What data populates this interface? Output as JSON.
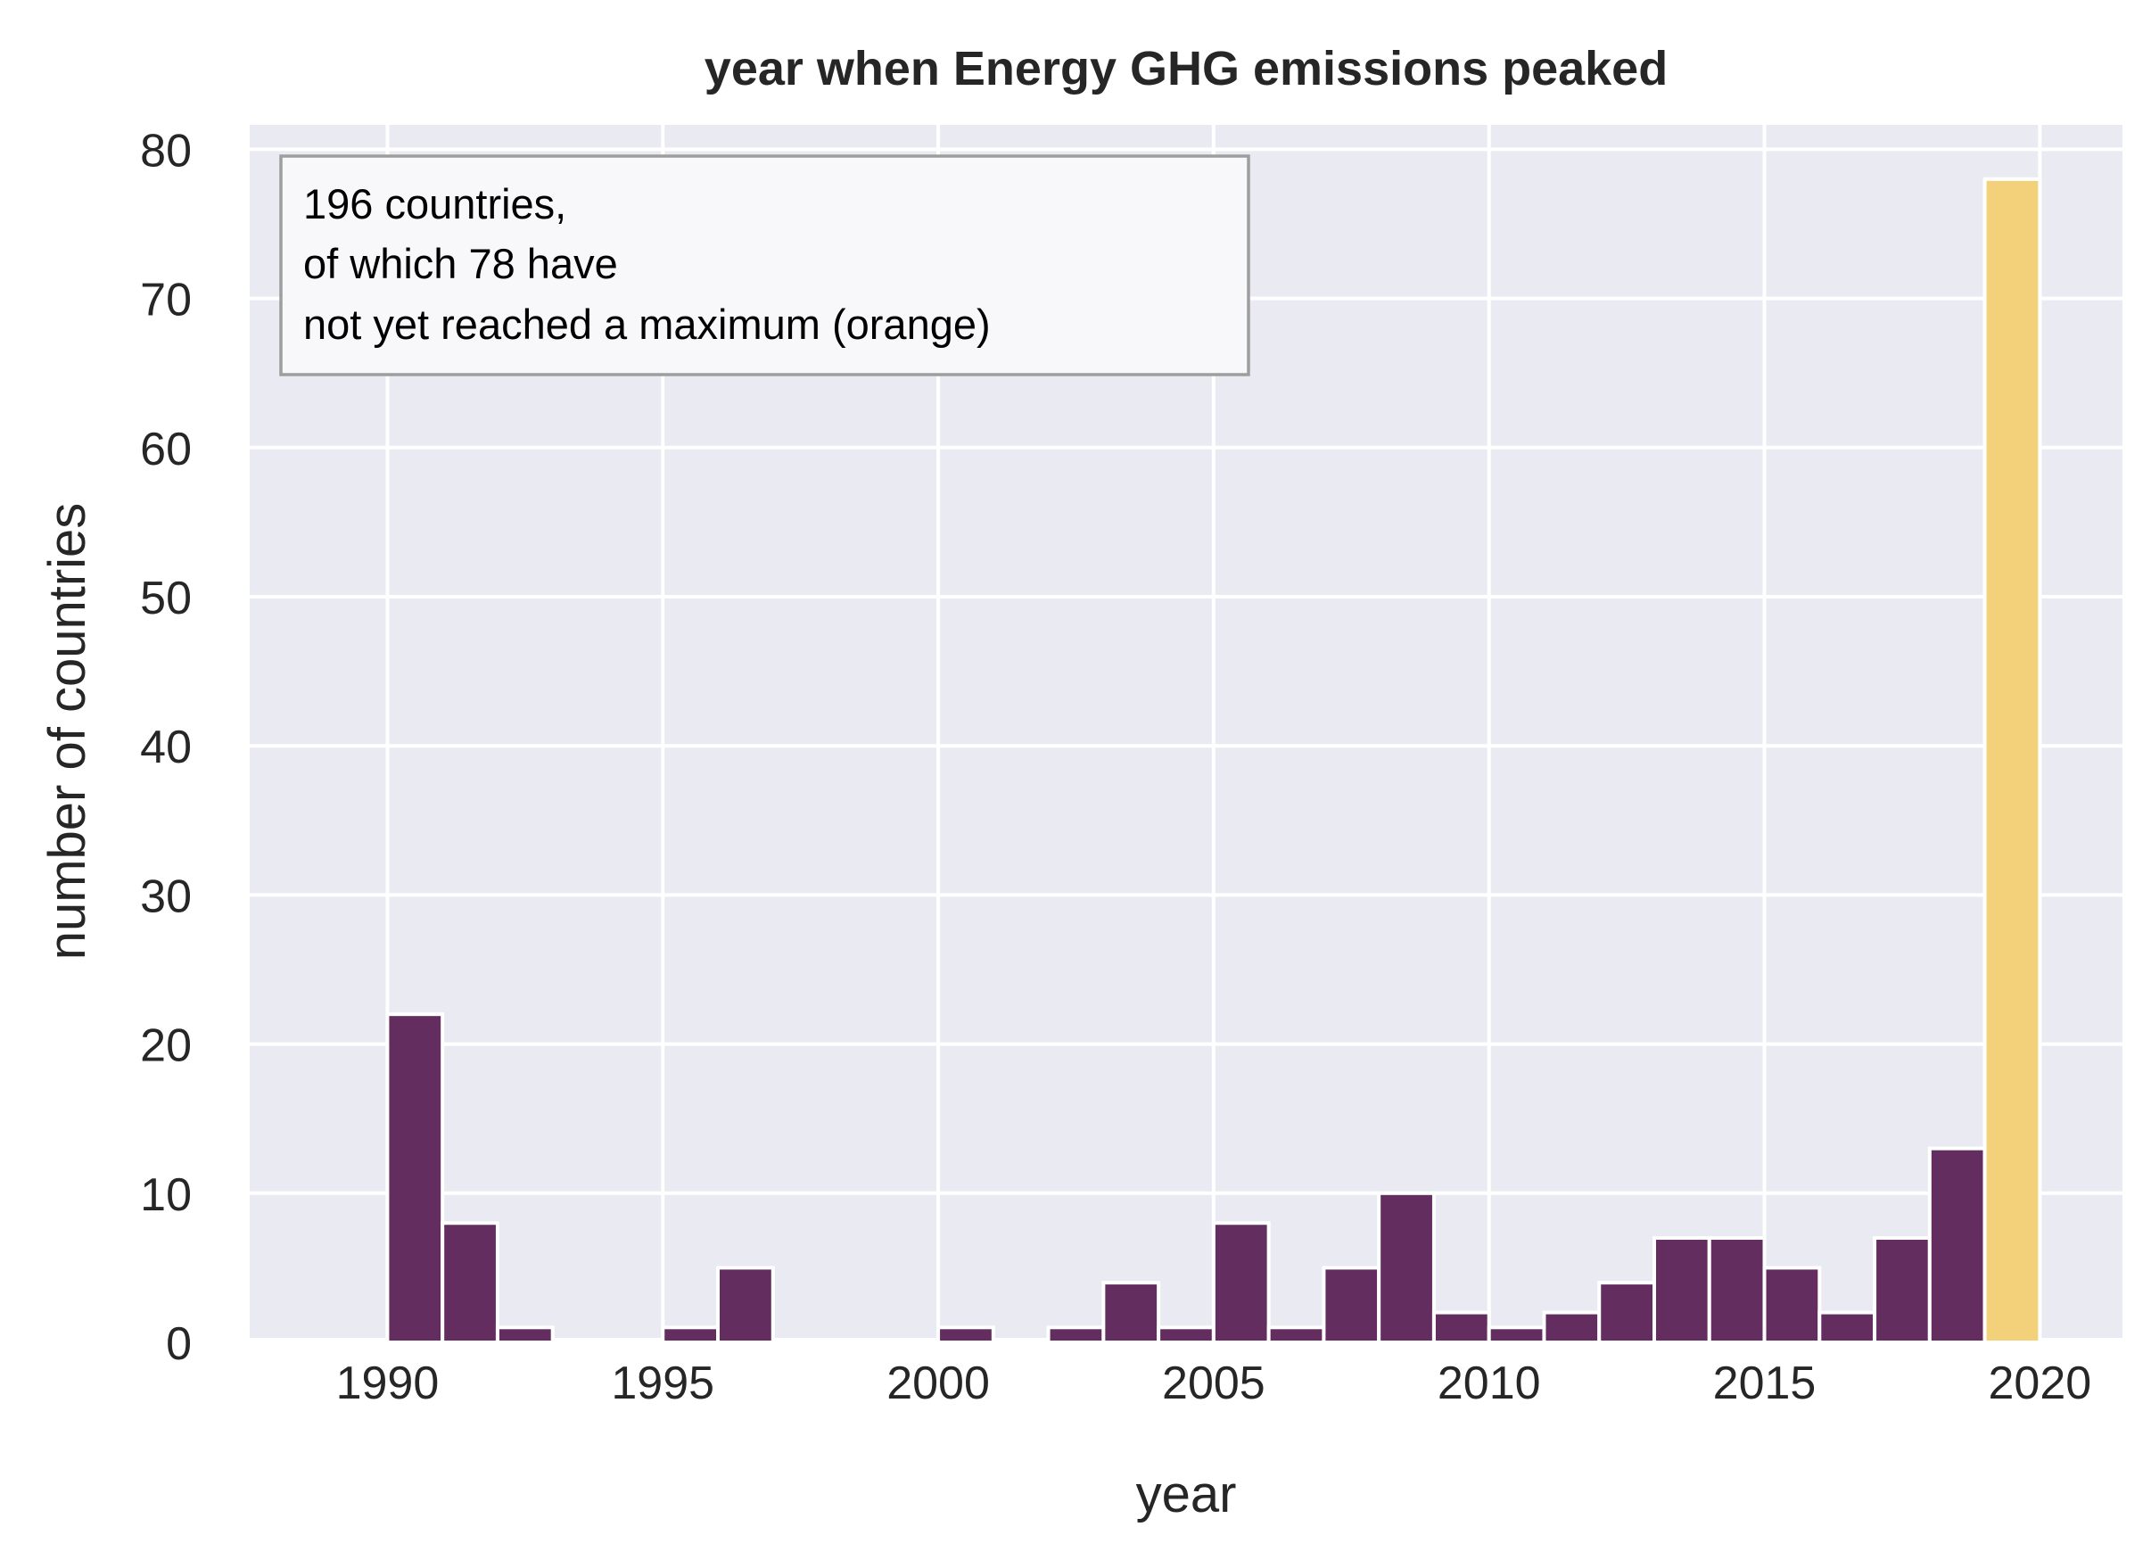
{
  "chart_data": {
    "type": "bar",
    "title": "year when Energy GHG emissions peaked",
    "xlabel": "year",
    "ylabel": "number of countries",
    "xlim": [
      1987.5,
      2021.5
    ],
    "ylim": [
      0,
      82
    ],
    "bin_width": 1,
    "grid": true,
    "xticks": [
      1990,
      1995,
      2000,
      2005,
      2010,
      2015,
      2020
    ],
    "yticks": [
      0,
      10,
      20,
      30,
      40,
      50,
      60,
      70,
      80
    ],
    "series": [
      {
        "color": "#632e5f",
        "bins": [
          {
            "x": 1990,
            "value": 22
          },
          {
            "x": 1991,
            "value": 8
          },
          {
            "x": 1992,
            "value": 1
          },
          {
            "x": 1995,
            "value": 1
          },
          {
            "x": 1996,
            "value": 5
          },
          {
            "x": 2000,
            "value": 1
          },
          {
            "x": 2002,
            "value": 1
          },
          {
            "x": 2003,
            "value": 4
          },
          {
            "x": 2004,
            "value": 1
          },
          {
            "x": 2005,
            "value": 8
          },
          {
            "x": 2006,
            "value": 1
          },
          {
            "x": 2007,
            "value": 5
          },
          {
            "x": 2008,
            "value": 10
          },
          {
            "x": 2009,
            "value": 2
          },
          {
            "x": 2010,
            "value": 1
          },
          {
            "x": 2011,
            "value": 2
          },
          {
            "x": 2012,
            "value": 4
          },
          {
            "x": 2013,
            "value": 7
          },
          {
            "x": 2014,
            "value": 7
          },
          {
            "x": 2015,
            "value": 5
          },
          {
            "x": 2016,
            "value": 2
          },
          {
            "x": 2017,
            "value": 7
          },
          {
            "x": 2018,
            "value": 13
          }
        ]
      },
      {
        "color": "#f2d17a",
        "bins": [
          {
            "x": 2019,
            "value": 78
          }
        ]
      }
    ],
    "annotation": {
      "lines": [
        "196 countries,",
        "of which 78 have",
        "not yet reached a maximum (orange)"
      ],
      "placement": "top-left"
    }
  },
  "colors": {
    "plot_background": "#eaeaf2",
    "grid": "#ffffff",
    "text": "#262626"
  }
}
